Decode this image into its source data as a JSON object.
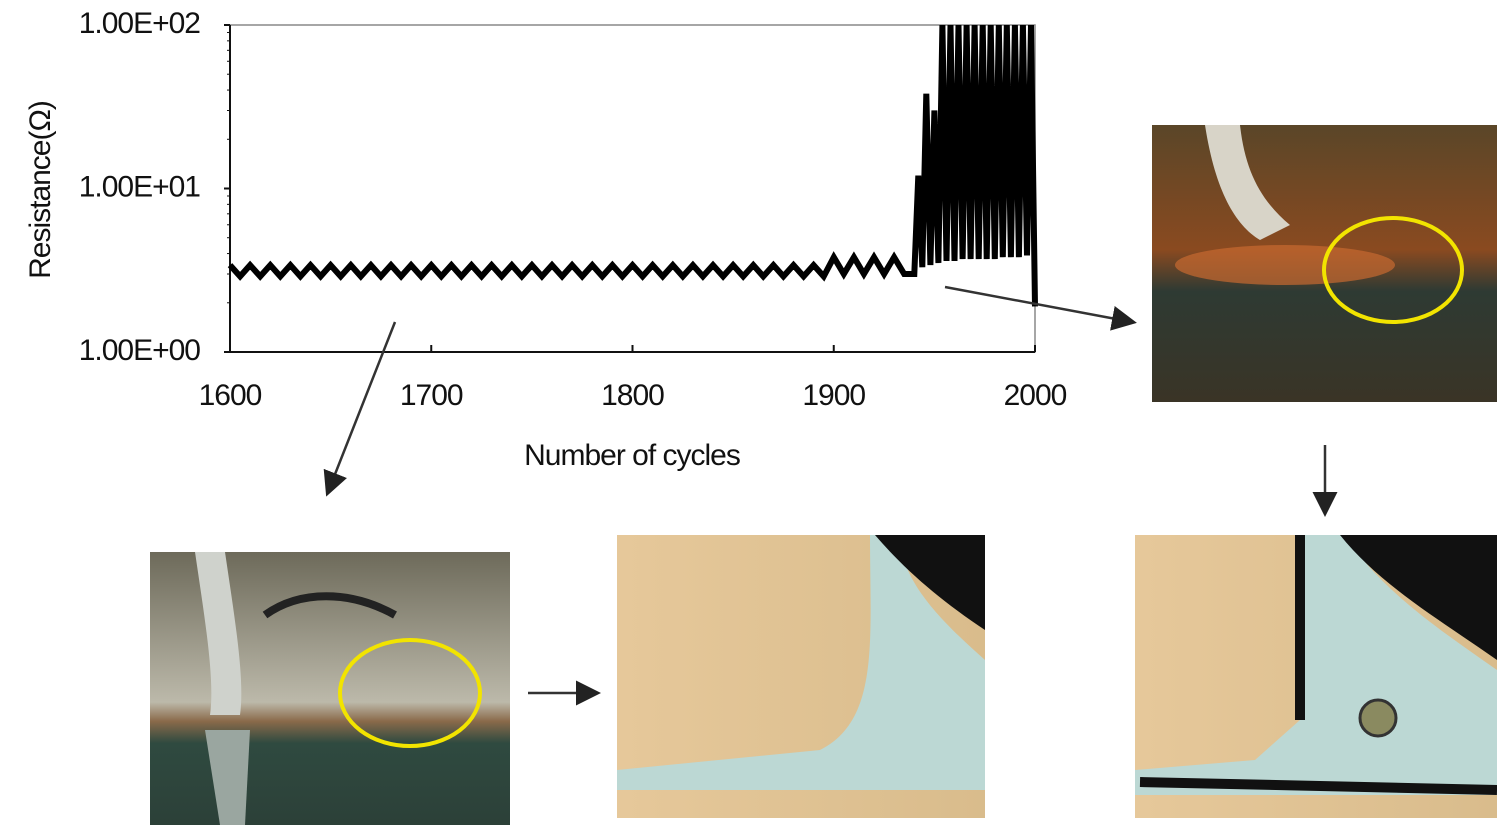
{
  "chart_data": {
    "type": "line",
    "y_label": "Resistance(Ω)",
    "x_label": "Number of cycles",
    "xlim": [
      1600,
      2000
    ],
    "xticks": [
      1600,
      1700,
      1800,
      1900,
      2000
    ],
    "ylim": [
      1,
      100
    ],
    "yticks": [
      {
        "value": 1,
        "label": "1.00E+00"
      },
      {
        "value": 10,
        "label": "1.00E+01"
      },
      {
        "value": 100,
        "label": "1.00E+02"
      }
    ],
    "log_y": true,
    "series": [
      {
        "color": "#000000",
        "x": [
          1600,
          1605,
          1610,
          1615,
          1620,
          1625,
          1630,
          1635,
          1640,
          1645,
          1650,
          1655,
          1660,
          1665,
          1670,
          1675,
          1680,
          1685,
          1690,
          1695,
          1700,
          1705,
          1710,
          1715,
          1720,
          1725,
          1730,
          1735,
          1740,
          1745,
          1750,
          1755,
          1760,
          1765,
          1770,
          1775,
          1780,
          1785,
          1790,
          1795,
          1800,
          1805,
          1810,
          1815,
          1820,
          1825,
          1830,
          1835,
          1840,
          1845,
          1850,
          1855,
          1860,
          1865,
          1870,
          1875,
          1880,
          1885,
          1890,
          1895,
          1900,
          1905,
          1910,
          1915,
          1920,
          1925,
          1930,
          1935,
          1940,
          1942,
          1944,
          1946,
          1948,
          1950,
          1952,
          1954,
          1956,
          1958,
          1960,
          1962,
          1964,
          1966,
          1968,
          1970,
          1972,
          1974,
          1976,
          1978,
          1980,
          1982,
          1984,
          1986,
          1988,
          1990,
          1992,
          1994,
          1996,
          1998,
          2000
        ],
        "values": [
          3.4,
          2.9,
          3.4,
          2.9,
          3.4,
          2.9,
          3.4,
          2.9,
          3.4,
          2.9,
          3.4,
          2.9,
          3.4,
          2.9,
          3.4,
          2.9,
          3.4,
          2.9,
          3.4,
          2.9,
          3.4,
          2.9,
          3.4,
          2.9,
          3.4,
          2.9,
          3.4,
          2.9,
          3.4,
          2.9,
          3.4,
          2.9,
          3.4,
          2.9,
          3.4,
          2.9,
          3.4,
          2.9,
          3.4,
          2.9,
          3.4,
          2.9,
          3.4,
          2.9,
          3.4,
          2.9,
          3.4,
          2.9,
          3.4,
          2.9,
          3.4,
          2.9,
          3.4,
          2.9,
          3.4,
          2.9,
          3.4,
          2.9,
          3.4,
          2.9,
          3.8,
          3.0,
          3.8,
          3.0,
          3.8,
          3.0,
          3.8,
          3.0,
          3.0,
          12,
          3.3,
          38,
          3.4,
          30,
          3.5,
          100,
          3.6,
          100,
          3.6,
          100,
          3.7,
          100,
          3.7,
          100,
          3.7,
          100,
          3.7,
          100,
          3.7,
          100,
          3.8,
          100,
          3.8,
          100,
          3.8,
          100,
          3.9,
          100,
          1.9
        ]
      }
    ]
  }
}
